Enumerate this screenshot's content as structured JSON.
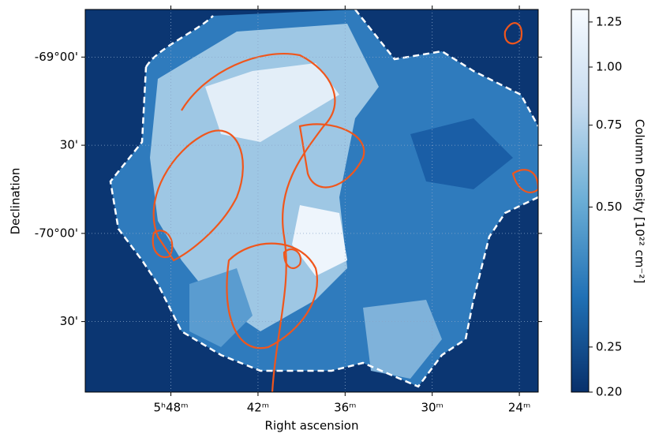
{
  "chart_data": {
    "type": "image",
    "xlabel": "Right ascension",
    "ylabel": "Declination",
    "xlim": [
      353.9,
      322.7
    ],
    "ylim": [
      -70.9,
      -68.73
    ],
    "xticks": [
      {
        "value": 348,
        "label": "5ʰ48ᵐ"
      },
      {
        "value": 342,
        "label": "42ᵐ"
      },
      {
        "value": 336,
        "label": "36ᵐ"
      },
      {
        "value": 330,
        "label": "30ᵐ"
      },
      {
        "value": 324,
        "label": "24ᵐ"
      }
    ],
    "yticks": [
      {
        "value": -69,
        "label": "-69°00'"
      },
      {
        "value": -69.5,
        "label": "30'"
      },
      {
        "value": -70,
        "label": "-70°00'"
      },
      {
        "value": -70.5,
        "label": "30'"
      }
    ],
    "grid": true,
    "colorbar": {
      "label": "Column Density [10²² cm⁻²]",
      "log": true,
      "lim": [
        0.2,
        1.33
      ],
      "ticks": [
        {
          "value": 0.2,
          "label": "0.20"
        },
        {
          "value": 0.25,
          "label": "0.25"
        },
        {
          "value": 0.5,
          "label": "0.50"
        },
        {
          "value": 0.75,
          "label": "0.75"
        },
        {
          "value": 1.0,
          "label": "1.00"
        },
        {
          "value": 1.25,
          "label": "1.25"
        }
      ],
      "colors": [
        "#08306b",
        "#2171b5",
        "#6baed6",
        "#c6dbef",
        "#f7fbff"
      ]
    }
  }
}
